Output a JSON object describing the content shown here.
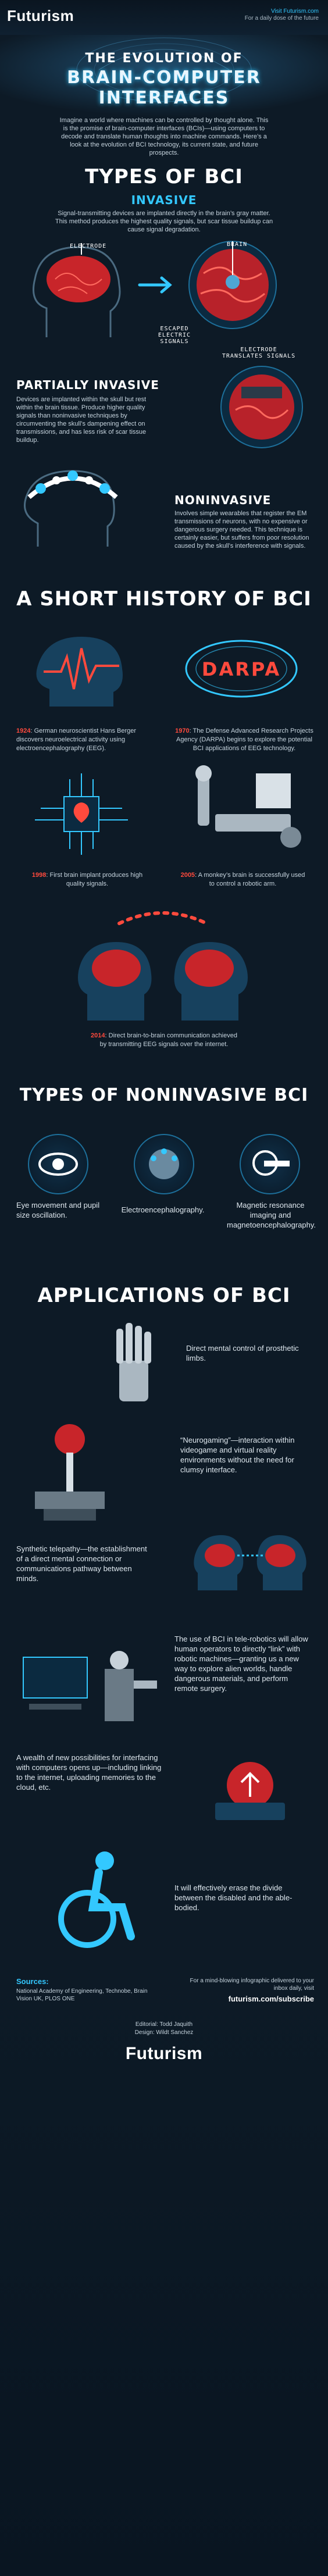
{
  "header": {
    "logo": "Futurism",
    "visit_line1": "Visit Futurism.com",
    "visit_line2": "For a daily dose of the future"
  },
  "hero": {
    "title_line1": "THE EVOLUTION OF",
    "title_line2": "BRAIN-COMPUTER INTERFACES",
    "intro": "Imagine a world where machines can be controlled by thought alone. This is the promise of brain-computer interfaces (BCIs)—using computers to decode and translate human thoughts into machine commands. Here’s a look at the evolution of BCI technology, its current state, and future prospects."
  },
  "types": {
    "title": "TYPES OF BCI",
    "invasive": {
      "title": "INVASIVE",
      "text": "Signal-transmitting devices are implanted directly in the brain’s gray matter. This method produces the highest quality signals, but scar tissue buildup can cause signal degradation.",
      "label_electrode": "ELECTRODE",
      "label_brain": "BRAIN",
      "label_escaped": "ESCAPED ELECTRIC SIGNALS",
      "label_translates": "ELECTRODE TRANSLATES SIGNALS"
    },
    "partial": {
      "title": "PARTIALLY INVASIVE",
      "text": "Devices are implanted within the skull but rest within the brain tissue. Produce higher quality signals than noninvasive techniques by circumventing the skull’s dampening effect on transmissions, and has less risk of scar tissue buildup."
    },
    "noninvasive": {
      "title": "NONINVASIVE",
      "text": "Involves simple wearables that register the EM transmissions of neurons, with no expensive or dangerous surgery needed. This technique is certainly easier, but suffers from poor resolution caused by the skull’s interference with signals."
    }
  },
  "history": {
    "title": "A SHORT HISTORY OF BCI",
    "darpa_logo": "DARPA",
    "events": [
      {
        "year": "1924",
        "text": ": German neuroscientist Hans Berger discovers neuroelectrical activity using electroencephalography (EEG)."
      },
      {
        "year": "1970",
        "text": ": The Defense Advanced Research Projects Agency (DARPA) begins to explore the potential BCI applications of EEG technology."
      },
      {
        "year": "1998",
        "text": ": First brain implant produces high quality signals."
      },
      {
        "year": "2005",
        "text": ": A monkey’s brain is successfully used to control a robotic arm."
      },
      {
        "year": "2014",
        "text": ": Direct brain-to-brain communication achieved by transmitting EEG signals over the internet."
      }
    ]
  },
  "noninvasive_types": {
    "title": "TYPES OF NONINVASIVE BCI",
    "items": [
      "Eye movement and pupil size oscillation.",
      "Electroencephalography.",
      "Magnetic resonance imaging and magnetoencephalography."
    ]
  },
  "applications": {
    "title": "APPLICATIONS OF BCI",
    "items": [
      "Direct mental control of prosthetic limbs.",
      "“Neurogaming”—interaction within videogame and virtual reality environments without the need for clumsy interface.",
      "Synthetic telepathy—the establishment of a direct mental connection or communications pathway between minds.",
      "The use of BCI in tele-robotics will allow human operators to directly “link” with robotic machines—granting us a new way to explore alien worlds, handle dangerous materials, and perform remote surgery.",
      "A wealth of new possibilities for interfacing with computers opens up—including linking to the internet, uploading memories to the cloud, etc.",
      "It will effectively erase the divide between the disabled and the able-bodied."
    ]
  },
  "footer": {
    "sources_title": "Sources:",
    "sources_text": "National Academy of Engineering, Technobe, Brain Vision UK, PLOS ONE",
    "subscribe_line": "For a mind-blowing infographic delivered to your inbox daily, visit",
    "subscribe_url": "futurism.com/subscribe",
    "editorial": "Editorial: Todd Jaquith",
    "design": "Design: Wildt Sanchez",
    "logo": "Futurism"
  }
}
